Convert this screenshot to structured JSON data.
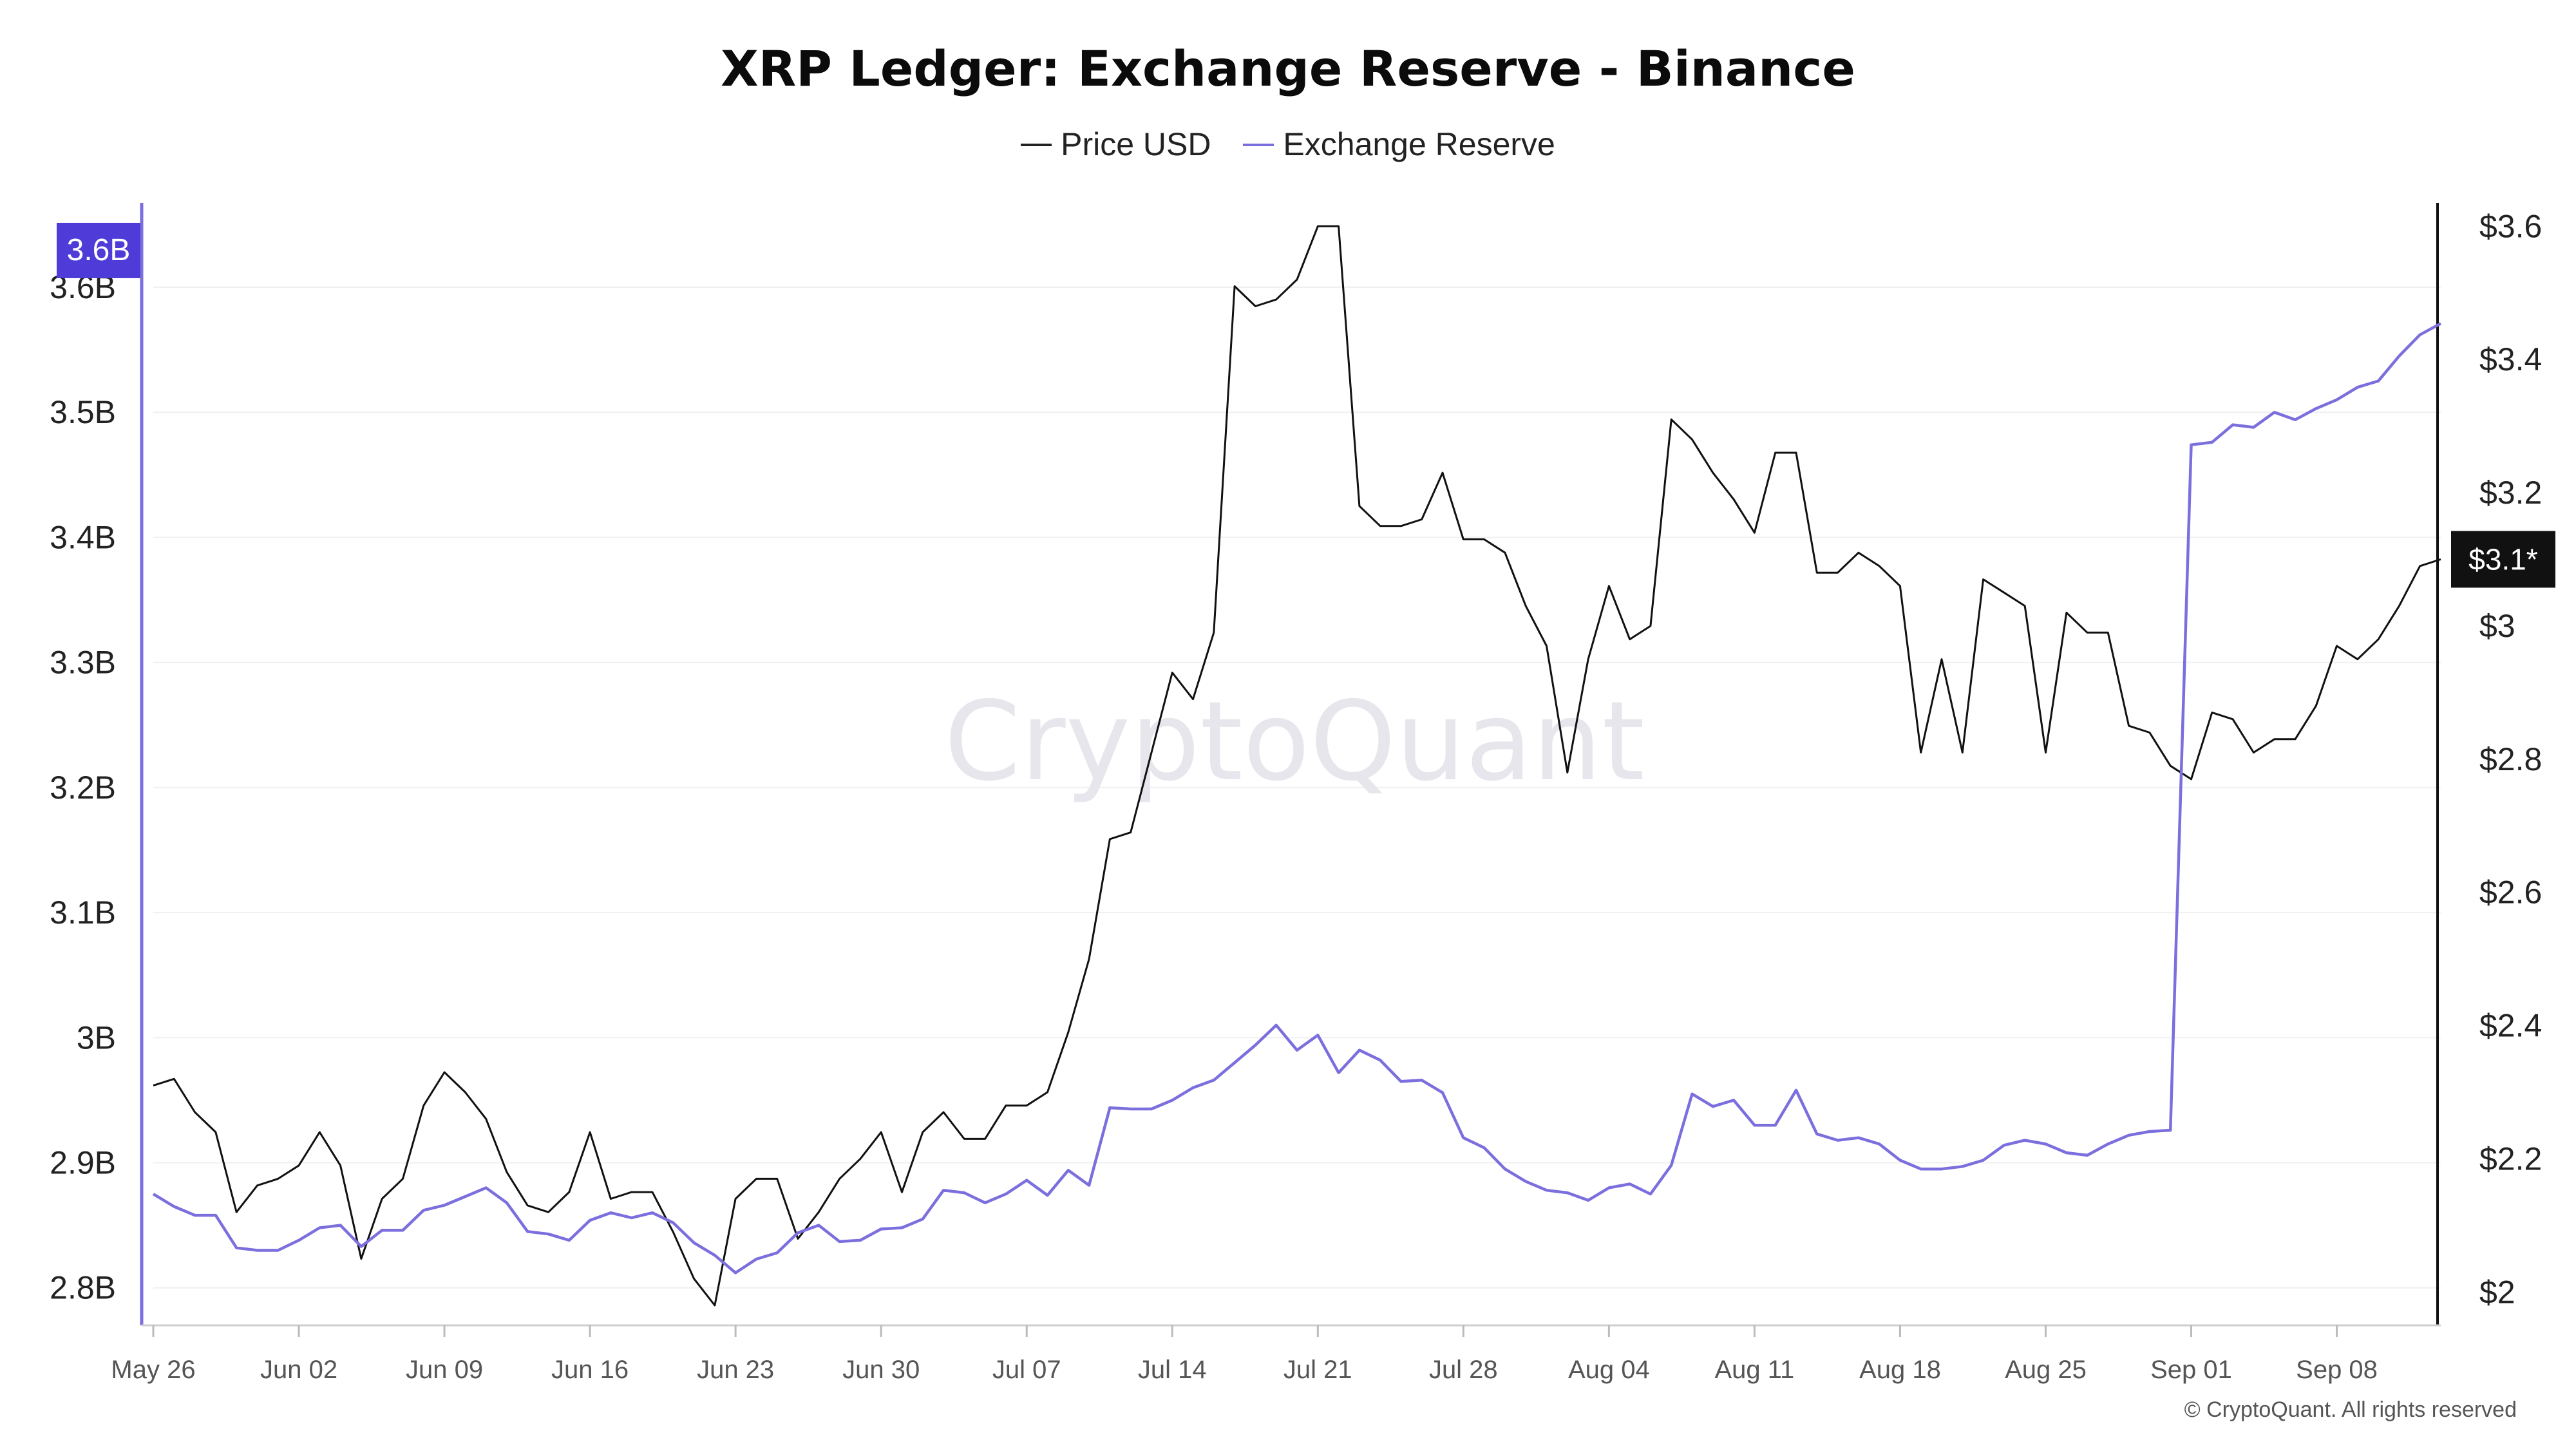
{
  "chart_data": {
    "type": "line",
    "title": "XRP Ledger: Exchange Reserve - Binance",
    "watermark": "CryptoQuant",
    "copyright": "© CryptoQuant. All rights reserved",
    "x_ticks": [
      "May 26",
      "Jun 02",
      "Jun 09",
      "Jun 16",
      "Jun 23",
      "Jun 30",
      "Jul 07",
      "Jul 14",
      "Jul 21",
      "Jul 28",
      "Aug 04",
      "Aug 11",
      "Aug 18",
      "Aug 25",
      "Sep 01",
      "Sep 08"
    ],
    "x_range_days": [
      0,
      110
    ],
    "left_axis": {
      "label": "Exchange Reserve",
      "ticks": [
        2.8,
        2.9,
        3.0,
        3.1,
        3.2,
        3.3,
        3.4,
        3.5,
        3.6
      ],
      "tick_labels": [
        "2.8B",
        "2.9B",
        "3B",
        "3.1B",
        "3.2B",
        "3.3B",
        "3.4B",
        "3.5B",
        "3.6B"
      ],
      "range": [
        2.77,
        3.67
      ]
    },
    "right_axis": {
      "label": "Price USD",
      "ticks": [
        2.0,
        2.2,
        2.4,
        2.6,
        2.8,
        3.0,
        3.2,
        3.4,
        3.6
      ],
      "tick_labels": [
        "$2",
        "$2.2",
        "$2.4",
        "$2.6",
        "$2.8",
        "$3",
        "$3.2",
        "$3.4",
        "$3.6"
      ],
      "range": [
        1.95,
        3.64
      ]
    },
    "badges": {
      "left": "3.6B",
      "right": "$3.1*"
    },
    "series": [
      {
        "name": "Price USD",
        "axis": "right",
        "color": "#111111",
        "values": [
          2.31,
          2.32,
          2.27,
          2.24,
          2.12,
          2.16,
          2.17,
          2.19,
          2.24,
          2.19,
          2.05,
          2.14,
          2.17,
          2.28,
          2.33,
          2.3,
          2.26,
          2.18,
          2.13,
          2.12,
          2.15,
          2.24,
          2.14,
          2.15,
          2.15,
          2.09,
          2.02,
          1.98,
          2.14,
          2.17,
          2.17,
          2.08,
          2.12,
          2.17,
          2.2,
          2.24,
          2.15,
          2.24,
          2.27,
          2.23,
          2.23,
          2.28,
          2.28,
          2.3,
          2.39,
          2.5,
          2.68,
          2.69,
          2.81,
          2.93,
          2.89,
          2.99,
          3.51,
          3.48,
          3.49,
          3.52,
          3.6,
          3.6,
          3.18,
          3.15,
          3.15,
          3.16,
          3.23,
          3.13,
          3.13,
          3.11,
          3.03,
          2.97,
          2.78,
          2.95,
          3.06,
          2.98,
          3.0,
          3.31,
          3.28,
          3.23,
          3.19,
          3.14,
          3.26,
          3.26,
          3.08,
          3.08,
          3.11,
          3.09,
          3.06,
          2.81,
          2.95,
          2.81,
          3.07,
          3.05,
          3.03,
          2.81,
          3.02,
          2.99,
          2.99,
          2.85,
          2.84,
          2.79,
          2.77,
          2.87,
          2.86,
          2.81,
          2.83,
          2.83,
          2.88,
          2.97,
          2.95,
          2.98,
          3.03,
          3.09,
          3.1
        ]
      },
      {
        "name": "Exchange Reserve",
        "axis": "left",
        "color": "#7b6fde",
        "values": [
          2.875,
          2.865,
          2.858,
          2.858,
          2.832,
          2.83,
          2.83,
          2.838,
          2.848,
          2.85,
          2.833,
          2.846,
          2.846,
          2.862,
          2.866,
          2.873,
          2.88,
          2.868,
          2.845,
          2.843,
          2.838,
          2.854,
          2.86,
          2.856,
          2.86,
          2.852,
          2.836,
          2.826,
          2.812,
          2.823,
          2.828,
          2.844,
          2.85,
          2.837,
          2.838,
          2.847,
          2.848,
          2.855,
          2.878,
          2.876,
          2.868,
          2.875,
          2.886,
          2.874,
          2.894,
          2.882,
          2.944,
          2.943,
          2.943,
          2.95,
          2.96,
          2.966,
          2.98,
          2.994,
          3.01,
          2.99,
          3.002,
          2.972,
          2.99,
          2.982,
          2.965,
          2.966,
          2.956,
          2.92,
          2.912,
          2.895,
          2.885,
          2.878,
          2.876,
          2.87,
          2.88,
          2.883,
          2.875,
          2.898,
          2.955,
          2.945,
          2.95,
          2.93,
          2.93,
          2.958,
          2.923,
          2.918,
          2.92,
          2.915,
          2.902,
          2.895,
          2.895,
          2.897,
          2.902,
          2.914,
          2.918,
          2.915,
          2.908,
          2.906,
          2.915,
          2.922,
          2.925,
          2.926,
          3.474,
          3.476,
          3.49,
          3.488,
          3.5,
          3.494,
          3.503,
          3.51,
          3.52,
          3.525,
          3.545,
          3.562,
          3.571
        ]
      }
    ]
  }
}
